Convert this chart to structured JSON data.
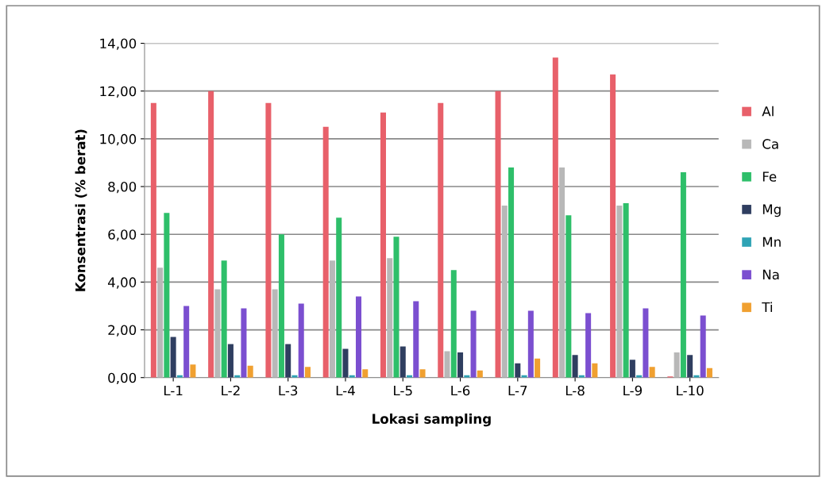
{
  "chart_data": {
    "type": "bar",
    "xlabel": "Lokasi sampling",
    "ylabel": "Konsentrasi (% berat)",
    "categories": [
      "L-1",
      "L-2",
      "L-3",
      "L-4",
      "L-5",
      "L-6",
      "L-7",
      "L-8",
      "L-9",
      "L-10"
    ],
    "series": [
      {
        "name": "Al",
        "color": "#e8606a",
        "values": [
          11.5,
          12.0,
          11.5,
          10.5,
          11.1,
          11.5,
          12.0,
          13.4,
          12.7,
          0.05
        ]
      },
      {
        "name": "Ca",
        "color": "#b8b8b8",
        "values": [
          4.6,
          3.7,
          3.7,
          4.9,
          5.0,
          1.1,
          7.2,
          8.8,
          7.2,
          1.05
        ]
      },
      {
        "name": "Fe",
        "color": "#2ebf6a",
        "values": [
          6.9,
          4.9,
          6.0,
          6.7,
          5.9,
          4.5,
          8.8,
          6.8,
          7.3,
          8.6
        ]
      },
      {
        "name": "Mg",
        "color": "#2f3e60",
        "values": [
          1.7,
          1.4,
          1.4,
          1.2,
          1.3,
          1.05,
          0.6,
          0.95,
          0.75,
          0.95
        ]
      },
      {
        "name": "Mn",
        "color": "#2fa3b5",
        "values": [
          0.1,
          0.1,
          0.1,
          0.1,
          0.1,
          0.1,
          0.1,
          0.1,
          0.1,
          0.1
        ]
      },
      {
        "name": "Na",
        "color": "#7b4fd0",
        "values": [
          3.0,
          2.9,
          3.1,
          3.4,
          3.2,
          2.8,
          2.8,
          2.7,
          2.9,
          2.6
        ]
      },
      {
        "name": "Ti",
        "color": "#f0a030",
        "values": [
          0.55,
          0.5,
          0.45,
          0.35,
          0.35,
          0.3,
          0.8,
          0.6,
          0.45,
          0.4
        ]
      }
    ],
    "ylim": [
      0,
      14
    ],
    "yticks": [
      {
        "value": 0,
        "label": "0,00"
      },
      {
        "value": 2,
        "label": "2,00"
      },
      {
        "value": 4,
        "label": "4,00"
      },
      {
        "value": 6,
        "label": "6,00"
      },
      {
        "value": 8,
        "label": "8,00"
      },
      {
        "value": 10,
        "label": "10,00"
      },
      {
        "value": 12,
        "label": "12,00"
      },
      {
        "value": 14,
        "label": "14,00"
      }
    ],
    "grid": "y",
    "legend": "right"
  }
}
